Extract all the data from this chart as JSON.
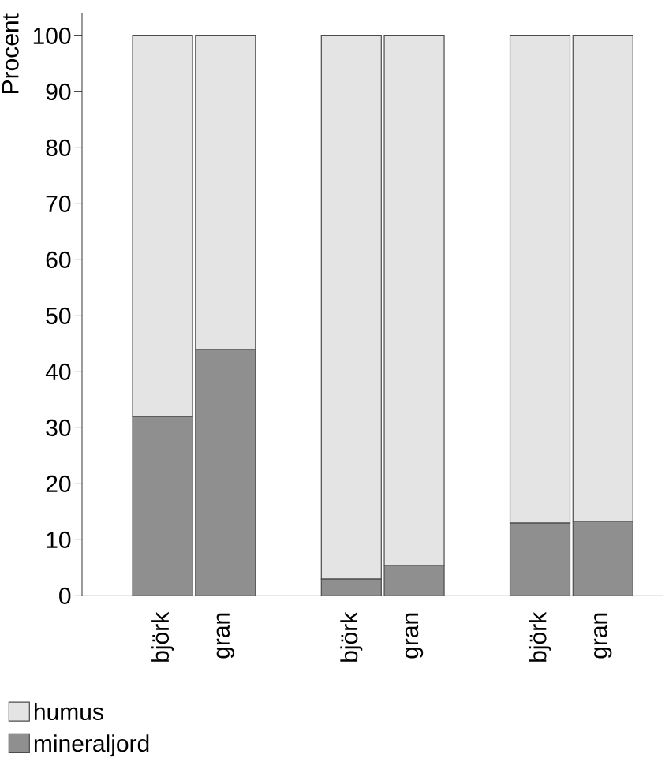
{
  "chart_data": {
    "type": "bar",
    "stacked": true,
    "ylabel": "Procent",
    "categories": [
      "björk",
      "gran",
      null,
      "björk",
      "gran",
      null,
      "björk",
      "gran"
    ],
    "series": [
      {
        "name": "mineraljord",
        "color": "#8f8f8f",
        "values": [
          32,
          44,
          null,
          3,
          5.4,
          null,
          13,
          13.3
        ]
      },
      {
        "name": "humus",
        "color": "#e4e4e4",
        "values": [
          68,
          56,
          null,
          97,
          94.6,
          null,
          87,
          86.7
        ]
      }
    ],
    "ylim": [
      0,
      104
    ],
    "yticks": [
      0,
      10,
      20,
      30,
      40,
      50,
      60,
      70,
      80,
      90,
      100
    ],
    "grid": false,
    "legend": "bottom left"
  }
}
